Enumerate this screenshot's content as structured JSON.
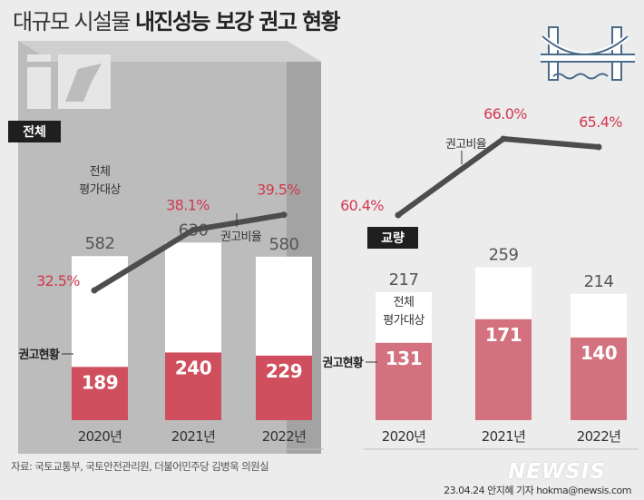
{
  "title": {
    "normal": "대규모 시설물",
    "bold": "내진성능 보강 권고 현황"
  },
  "source": "자료: 국토교통부, 국토안전관리원, 더불어민주당 김병욱 의원실",
  "byline": "23.04.24 안지혜 기자 hokma@newsis.com",
  "watermark": "NEWSIS",
  "colors": {
    "background": "#ececec",
    "bar_total_fill": "#ffffff",
    "left_recommend": "#cf4f5e",
    "right_recommend": "#d3717f",
    "rate_label": "#d03a4e",
    "line": "#4d4d4d",
    "tag_bg": "#1f1f1f",
    "panel_gray": "#bcbcbc"
  },
  "icons": [
    "building-icon",
    "bridge-icon"
  ],
  "chart_data": [
    {
      "type": "bar",
      "panel_label": "전체",
      "categories": [
        "2020년",
        "2021년",
        "2022년"
      ],
      "series": [
        {
          "name": "평가대상",
          "values": [
            582,
            630,
            580
          ]
        },
        {
          "name": "권고현황",
          "values": [
            189,
            240,
            229
          ]
        }
      ],
      "rate_series": {
        "name": "권고비율",
        "values_label": [
          "32.5%",
          "38.1%",
          "39.5%"
        ],
        "values": [
          32.5,
          38.1,
          39.5
        ]
      },
      "bar_note": [
        "전체",
        "평가대상"
      ],
      "recommend_legend": "권고현황",
      "rate_legend": "권고비율"
    },
    {
      "type": "bar",
      "panel_label": "교량",
      "categories": [
        "2020년",
        "2021년",
        "2022년"
      ],
      "series": [
        {
          "name": "평가대상",
          "values": [
            217,
            259,
            214
          ]
        },
        {
          "name": "권고현황",
          "values": [
            131,
            171,
            140
          ]
        }
      ],
      "rate_series": {
        "name": "권고비율",
        "values_label": [
          "60.4%",
          "66.0%",
          "65.4%"
        ],
        "values": [
          60.4,
          66.0,
          65.4
        ]
      },
      "bar_note": [
        "전체",
        "평가대상"
      ],
      "recommend_legend": "권고현황",
      "rate_legend": "권고비율"
    }
  ]
}
